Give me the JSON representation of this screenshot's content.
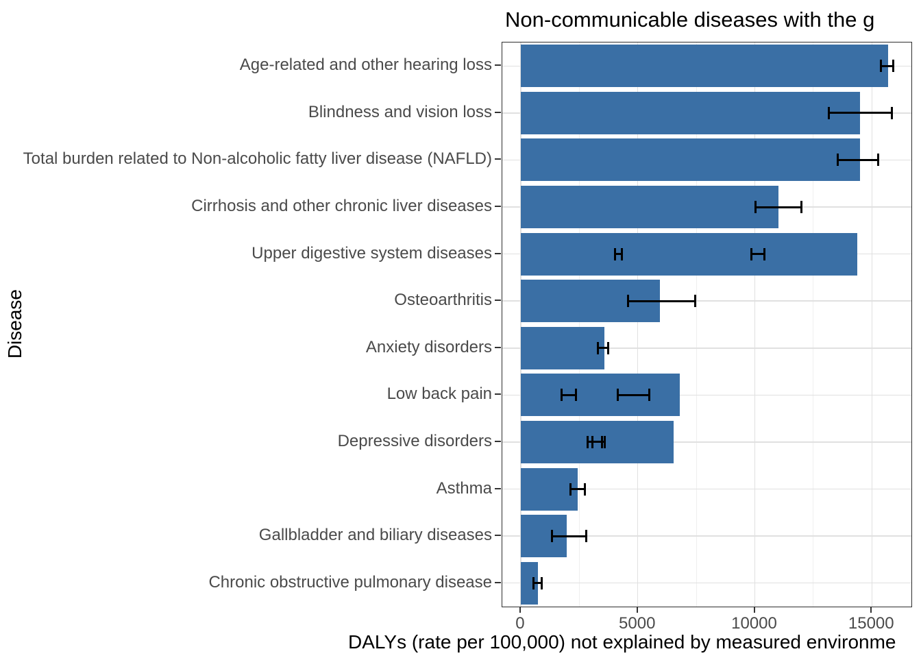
{
  "chart_data": {
    "type": "bar",
    "orientation": "horizontal",
    "title": "Non-communicable diseases with the g",
    "xlabel": "DALYs (rate per 100,000) not explained by measured environme",
    "ylabel": "Disease",
    "x_ticks": [
      0,
      5000,
      10000,
      15000
    ],
    "x_tick_labels": [
      "0",
      "5000",
      "10000",
      "15000"
    ],
    "x_minor_grid": [
      2500,
      7500,
      12500
    ],
    "xlim": [
      -790,
      16690
    ],
    "grid": true,
    "legend": "none",
    "bar_color": "#3a6fa5",
    "error_bar_color": "#000000",
    "categories": [
      "Age-related and other hearing loss",
      "Blindness and vision loss",
      "Total burden related to Non-alcoholic fatty liver disease (NAFLD)",
      "Cirrhosis and other chronic liver diseases",
      "Upper digestive system diseases",
      "Osteoarthritis",
      "Anxiety disorders",
      "Low back pain",
      "Depressive disorders",
      "Asthma",
      "Gallbladder and biliary diseases",
      "Chronic obstructive pulmonary disease"
    ],
    "values": [
      15700,
      14500,
      14480,
      11000,
      14370,
      5950,
      3560,
      6800,
      6520,
      2430,
      1950,
      720
    ],
    "error_bars": [
      [
        [
          15400,
          15900
        ]
      ],
      [
        [
          13150,
          15870
        ]
      ],
      [
        [
          13530,
          15270
        ]
      ],
      [
        [
          10040,
          11980
        ]
      ],
      [
        [
          4030,
          4330
        ],
        [
          9840,
          10420
        ]
      ],
      [
        [
          4590,
          7460
        ]
      ],
      [
        [
          3280,
          3730
        ]
      ],
      [
        [
          1740,
          2370
        ],
        [
          4130,
          5500
        ]
      ],
      [
        [
          2850,
          3460
        ],
        [
          3050,
          3600
        ]
      ],
      [
        [
          2120,
          2740
        ]
      ],
      [
        [
          1320,
          2800
        ]
      ],
      [
        [
          530,
          890
        ]
      ]
    ]
  }
}
